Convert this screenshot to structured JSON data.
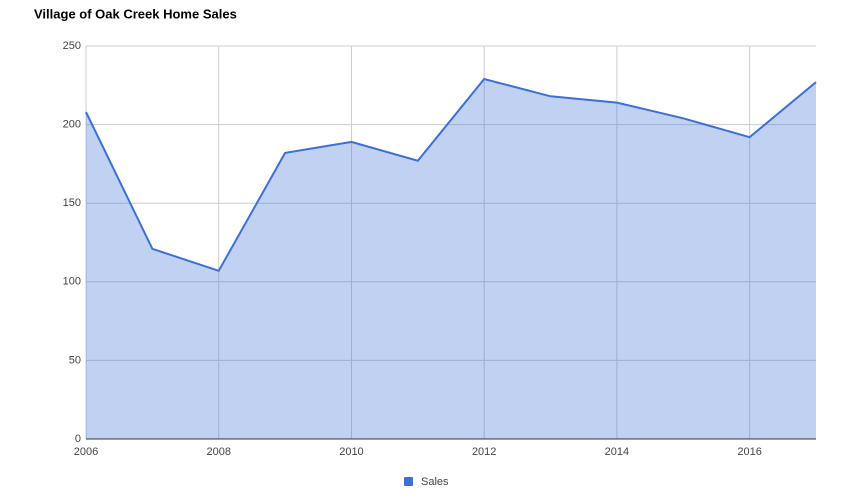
{
  "chart_data": {
    "type": "area",
    "title": "Village of Oak Creek Home Sales",
    "x": [
      2006,
      2007,
      2008,
      2009,
      2010,
      2011,
      2012,
      2013,
      2014,
      2015,
      2016,
      2017
    ],
    "series": [
      {
        "name": "Sales",
        "color": "#3c6fd8",
        "values": [
          208,
          121,
          107,
          182,
          189,
          177,
          229,
          218,
          214,
          204,
          192,
          227
        ]
      }
    ],
    "xlim": [
      2006,
      2017
    ],
    "xticks": [
      2006,
      2008,
      2010,
      2012,
      2014,
      2016
    ],
    "ylim": [
      0,
      250
    ],
    "yticks": [
      0,
      50,
      100,
      150,
      200,
      250
    ],
    "grid": true,
    "legend": "bottom"
  }
}
